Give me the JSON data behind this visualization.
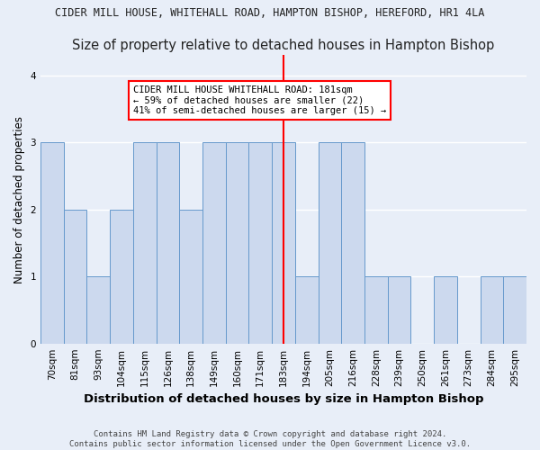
{
  "title": "CIDER MILL HOUSE, WHITEHALL ROAD, HAMPTON BISHOP, HEREFORD, HR1 4LA",
  "subtitle": "Size of property relative to detached houses in Hampton Bishop",
  "xlabel": "Distribution of detached houses by size in Hampton Bishop",
  "ylabel": "Number of detached properties",
  "categories": [
    "70sqm",
    "81sqm",
    "93sqm",
    "104sqm",
    "115sqm",
    "126sqm",
    "138sqm",
    "149sqm",
    "160sqm",
    "171sqm",
    "183sqm",
    "194sqm",
    "205sqm",
    "216sqm",
    "228sqm",
    "239sqm",
    "250sqm",
    "261sqm",
    "273sqm",
    "284sqm",
    "295sqm"
  ],
  "values": [
    3,
    2,
    1,
    2,
    3,
    3,
    2,
    3,
    3,
    3,
    3,
    1,
    3,
    3,
    1,
    1,
    0,
    1,
    0,
    1,
    1
  ],
  "bar_color": "#ccd9ee",
  "bar_edge_color": "#6699cc",
  "highlight_index": 10,
  "vline_color": "red",
  "annotation_text": "CIDER MILL HOUSE WHITEHALL ROAD: 181sqm\n← 59% of detached houses are smaller (22)\n41% of semi-detached houses are larger (15) →",
  "annotation_box_color": "white",
  "annotation_box_edge": "red",
  "footnote": "Contains HM Land Registry data © Crown copyright and database right 2024.\nContains public sector information licensed under the Open Government Licence v3.0.",
  "ylim": [
    0,
    4.3
  ],
  "yticks": [
    0,
    1,
    2,
    3,
    4
  ],
  "background_color": "#e8eef8",
  "grid_color": "#ffffff",
  "title_fontsize": 8.5,
  "subtitle_fontsize": 10.5,
  "xlabel_fontsize": 9.5,
  "ylabel_fontsize": 8.5,
  "tick_fontsize": 7.5,
  "annotation_fontsize": 7.5,
  "footnote_fontsize": 6.5
}
